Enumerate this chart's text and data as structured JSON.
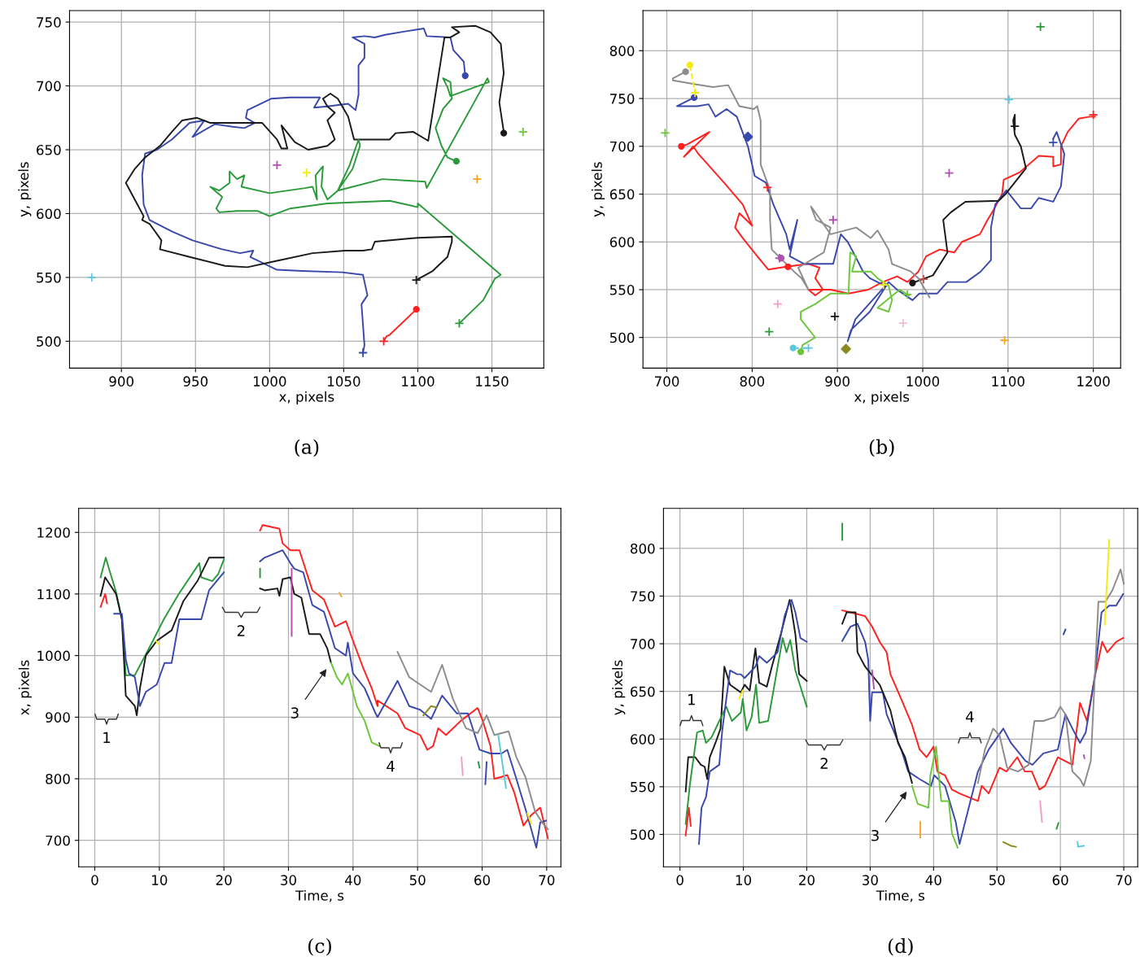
{
  "chart_data": [
    {
      "type": "line",
      "xlabel": "x, pixels",
      "ylabel": "y, pixels",
      "xlim": [
        865,
        1185
      ],
      "ylim": [
        479,
        759
      ],
      "xticks": [
        900,
        950,
        1000,
        1050,
        1100,
        1150
      ],
      "yticks": [
        500,
        550,
        600,
        650,
        700,
        750
      ],
      "grid": true,
      "annotations": [
        "(a)"
      ],
      "series": [
        {
          "color": "#3949ab",
          "x": [
            1063,
            1064,
            1062,
            1066,
            1063,
            1049,
            1022,
            1005,
            987,
            989,
            980,
            968,
            948,
            934,
            919,
            915,
            914,
            916,
            924,
            934,
            946,
            956,
            948,
            963,
            975,
            983,
            990,
            984,
            985,
            1001,
            1014,
            1034,
            1030,
            1039,
            1053,
            1058,
            1060,
            1060,
            1064,
            1064,
            1056,
            1064,
            1071,
            1078,
            1093,
            1104,
            1106,
            1122,
            1124,
            1131,
            1132
          ],
          "values": [
            491,
            497,
            529,
            536,
            552,
            554,
            555,
            556,
            566,
            571,
            569,
            572,
            579,
            586,
            595,
            607,
            630,
            647,
            650,
            658,
            671,
            673,
            660,
            670,
            668,
            667,
            671,
            675,
            681,
            690,
            691,
            691,
            683,
            684,
            686,
            681,
            693,
            716,
            722,
            733,
            738,
            739,
            738,
            740,
            743,
            745,
            739,
            738,
            728,
            719,
            708
          ]
        },
        {
          "color": "#1a1a1a",
          "x": [
            1099,
            1110,
            1120,
            1123,
            1123,
            1100,
            1071,
            1069,
            1063,
            1051,
            1029,
            1005,
            985,
            970,
            946,
            926,
            927,
            919,
            914,
            915,
            903,
            909,
            916,
            926,
            934,
            941,
            951,
            960,
            980,
            995,
            1005,
            1008,
            1012,
            1008,
            1017,
            1026,
            1039,
            1044,
            1039,
            1044,
            1039,
            1036,
            1041,
            1046,
            1053,
            1057,
            1081,
            1085,
            1097,
            1107,
            1118,
            1122,
            1128,
            1123,
            1139,
            1149,
            1156,
            1158,
            1155,
            1158
          ],
          "values": [
            548,
            555,
            566,
            578,
            582,
            581,
            578,
            572,
            571,
            571,
            569,
            563,
            558,
            559,
            566,
            572,
            579,
            592,
            595,
            598,
            624,
            635,
            644,
            653,
            664,
            673,
            675,
            671,
            671,
            671,
            658,
            651,
            651,
            669,
            656,
            650,
            653,
            658,
            673,
            679,
            684,
            690,
            694,
            690,
            676,
            658,
            658,
            663,
            664,
            657,
            738,
            738,
            742,
            746,
            747,
            742,
            733,
            710,
            687,
            664
          ]
        },
        {
          "color": "#2a9a3a",
          "x": [
            1128,
            1144,
            1152,
            1156,
            1100,
            1100,
            1081,
            1039,
            1014,
            1000,
            992,
            978,
            966,
            964,
            968,
            960,
            966,
            973,
            973,
            978,
            983,
            981,
            1000,
            1024,
            1029,
            1032,
            1031,
            1036,
            1035,
            1039,
            1046,
            1054,
            1060,
            1061,
            1056,
            1046,
            1076,
            1105,
            1106,
            1147,
            1148,
            1122,
            1120,
            1117,
            1122,
            1123,
            1117,
            1112,
            1116,
            1120,
            1126
          ],
          "values": [
            514,
            532,
            549,
            552,
            608,
            605,
            610,
            608,
            604,
            598,
            602,
            602,
            601,
            604,
            613,
            621,
            618,
            624,
            633,
            627,
            630,
            621,
            616,
            620,
            621,
            611,
            630,
            637,
            621,
            611,
            618,
            638,
            658,
            653,
            635,
            618,
            627,
            625,
            620,
            706,
            703,
            692,
            699,
            706,
            703,
            690,
            682,
            667,
            653,
            644,
            641
          ]
        },
        {
          "color": "#ff2020",
          "x": [
            1077,
            1079,
            1081,
            1099
          ],
          "values": [
            500,
            504,
            505,
            525
          ]
        },
        {
          "type": "scatter",
          "marker": "cross",
          "x": [
            880,
            1005,
            1025,
            1140,
            1171,
            1099,
            1128,
            1063,
            1077
          ],
          "values": [
            550,
            638,
            632,
            627,
            664,
            548,
            514,
            491,
            500
          ],
          "colors": [
            "#5bc8e0",
            "#b24fb2",
            "#f5ea14",
            "#f5a623",
            "#6bc63a",
            "#1a1a1a",
            "#2a9a3a",
            "#3949ab",
            "#ff2020"
          ]
        },
        {
          "type": "scatter",
          "marker": "circle",
          "x": [
            1132,
            1158,
            1126,
            1099
          ],
          "values": [
            708,
            663,
            641,
            525
          ],
          "colors": [
            "#3949ab",
            "#1a1a1a",
            "#2a9a3a",
            "#ff2020"
          ]
        }
      ]
    },
    {
      "type": "line",
      "xlabel": "x, pixels",
      "ylabel": "y, pixels",
      "xlim": [
        672,
        1232
      ],
      "ylim": [
        468,
        842
      ],
      "xticks": [
        700,
        800,
        900,
        1000,
        1100,
        1200
      ],
      "yticks": [
        500,
        550,
        600,
        650,
        700,
        750,
        800
      ],
      "grid": true,
      "annotations": [
        "(b)"
      ],
      "series": [
        {
          "color": "#ff2020",
          "x": [
            717,
            724,
            750,
            720,
            731,
            737,
            750,
            767,
            789,
            800,
            785,
            780,
            789,
            806,
            819,
            840,
            866,
            879,
            874,
            883,
            874,
            866,
            892,
            913,
            936,
            953,
            970,
            982,
            995,
            1004,
            1020,
            1037,
            1046,
            1067,
            1076,
            1084,
            1093,
            1095,
            1114,
            1136,
            1153,
            1153,
            1162,
            1162,
            1170,
            1183,
            1196,
            1202
          ],
          "values": [
            700,
            702,
            715,
            689,
            700,
            692,
            679,
            662,
            639,
            617,
            630,
            615,
            604,
            585,
            571,
            574,
            577,
            573,
            562,
            550,
            544,
            550,
            550,
            546,
            550,
            558,
            564,
            558,
            569,
            585,
            592,
            589,
            600,
            608,
            623,
            635,
            650,
            665,
            673,
            690,
            689,
            679,
            681,
            700,
            715,
            729,
            731,
            731
          ]
        },
        {
          "color": "#3949ab",
          "x": [
            732,
            712,
            736,
            749,
            757,
            770,
            782,
            795,
            803,
            816,
            825,
            840,
            844,
            853,
            844,
            861,
            895,
            904,
            912,
            921,
            930,
            938,
            956,
            921,
            912,
            916,
            938,
            960,
            970,
            988,
            996,
            1017,
            1029,
            1051,
            1068,
            1080,
            1080,
            1085,
            1098,
            1115,
            1127,
            1136,
            1153,
            1162,
            1166,
            1157,
            1153
          ],
          "values": [
            751,
            742,
            742,
            744,
            731,
            739,
            731,
            700,
            669,
            662,
            639,
            608,
            592,
            623,
            585,
            577,
            577,
            608,
            600,
            585,
            569,
            562,
            554,
            519,
            496,
            508,
            527,
            558,
            550,
            539,
            546,
            546,
            558,
            558,
            569,
            581,
            615,
            639,
            654,
            635,
            635,
            646,
            642,
            658,
            692,
            715,
            708
          ]
        },
        {
          "color": "#1a1a1a",
          "x": [
            988,
            1012,
            1029,
            1024,
            1033,
            1050,
            1089,
            1097,
            1121,
            1115,
            1108,
            1106,
            1108,
            1108
          ],
          "values": [
            557,
            565,
            589,
            623,
            631,
            642,
            643,
            650,
            677,
            700,
            712,
            727,
            733,
            721
          ]
        },
        {
          "color": "#8c8c8c",
          "x": [
            722,
            707,
            707,
            733,
            754,
            772,
            785,
            802,
            806,
            810,
            810,
            821,
            821,
            823,
            849,
            858,
            866,
            854,
            884,
            892,
            875,
            869,
            892,
            922,
            939,
            947,
            960,
            964,
            986,
            995,
            1008
          ],
          "values": [
            778,
            771,
            769,
            765,
            762,
            764,
            742,
            739,
            742,
            727,
            681,
            654,
            623,
            592,
            569,
            562,
            550,
            573,
            589,
            615,
            623,
            637,
            608,
            615,
            604,
            612,
            592,
            577,
            569,
            562,
            542
          ]
        },
        {
          "color": "#f5ea14",
          "line_style": "dashed",
          "x": [
            727,
            733
          ],
          "values": [
            785,
            756
          ]
        },
        {
          "color": "#6bc63a",
          "x": [
            857,
            859,
            874,
            857,
            857,
            874,
            892,
            913,
            915,
            922,
            917,
            939,
            947,
            960,
            964,
            960,
            947,
            973,
            984
          ],
          "values": [
            485,
            492,
            500,
            519,
            527,
            535,
            546,
            546,
            589,
            585,
            569,
            569,
            562,
            554,
            539,
            527,
            531,
            550,
            544
          ]
        },
        {
          "color": "#5bc8e0",
          "line_style": "dashed",
          "x": [
            848,
            866
          ],
          "values": [
            489,
            489
          ]
        },
        {
          "type": "scatter",
          "marker": "cross",
          "x": [
            1138,
            1101,
            698,
            818,
            1031,
            895,
            832,
            830,
            820,
            897,
            977,
            1096,
            982,
            1001,
            1200,
            1108,
            1153,
            866,
            733,
            954
          ],
          "values": [
            825,
            749,
            714,
            657,
            672,
            623,
            583,
            535,
            506,
            522,
            515,
            497,
            545,
            561,
            733,
            721,
            704,
            489,
            756,
            555
          ],
          "colors": [
            "#2a9a3a",
            "#5bc8e0",
            "#6bc63a",
            "#ff2020",
            "#b24fb2",
            "#b24fb2",
            "#b24fb2",
            "#f0a0c8",
            "#2a9a3a",
            "#1a1a1a",
            "#f0c0d0",
            "#f5a623",
            "#6bc63a",
            "#c05050",
            "#ff2020",
            "#1a1a1a",
            "#3949ab",
            "#5bc8e0",
            "#f5ea14",
            "#f5ea14"
          ]
        },
        {
          "type": "scatter",
          "marker": "circle",
          "x": [
            717,
            842,
            732,
            722,
            727,
            988,
            857,
            848,
            834
          ],
          "values": [
            700,
            574,
            751,
            778,
            785,
            557,
            485,
            489,
            583
          ],
          "colors": [
            "#ff2020",
            "#ff2020",
            "#3949ab",
            "#8c8c8c",
            "#f5ea14",
            "#1a1a1a",
            "#6bc63a",
            "#5bc8e0",
            "#b24fb2"
          ]
        },
        {
          "type": "scatter",
          "marker": "diamond",
          "x": [
            795,
            910
          ],
          "values": [
            710,
            488
          ],
          "colors": [
            "#3949ab",
            "#8a8a20"
          ]
        }
      ]
    },
    {
      "type": "line",
      "xlabel": "Time, s",
      "ylabel": "x, pixels",
      "xlim": [
        -2.5,
        72.2
      ],
      "ylim": [
        657,
        1239
      ],
      "xticks": [
        0,
        10,
        20,
        30,
        40,
        50,
        60,
        70
      ],
      "yticks": [
        700,
        800,
        900,
        1000,
        1100,
        1200
      ],
      "grid": true,
      "annotations": [
        "(c)",
        "1",
        "2",
        "3",
        "4"
      ],
      "series": [
        {
          "color": "#2a9a3a",
          "x": [
            0.9,
            1.7,
            2.2,
            3.3,
            4.2,
            4.8,
            6.2,
            6.9,
            9.0,
            10.7,
            13.0,
            16.2,
            16.5,
            18.2,
            19.1,
            20.0
          ],
          "values": [
            1127,
            1159,
            1141,
            1103,
            1059,
            968,
            968,
            982,
            1024,
            1059,
            1100,
            1150,
            1127,
            1121,
            1132,
            1156
          ]
        },
        {
          "color": "#1a1a1a",
          "x": [
            0.9,
            1.6,
            3.3,
            4.2,
            4.8,
            6.2,
            6.5,
            7.0,
            7.9,
            9.6,
            11.9,
            13.7,
            15.9,
            17.7,
            20.0
          ],
          "values": [
            1097,
            1127,
            1100,
            1059,
            935,
            918,
            903,
            947,
            1000,
            1024,
            1041,
            1088,
            1121,
            1159,
            1159
          ]
        },
        {
          "color": "#ff2020",
          "x": [
            0.9,
            1.6,
            1.9
          ],
          "values": [
            1079,
            1100,
            1085
          ]
        },
        {
          "color": "#3949ab",
          "x": [
            3.0,
            4.2,
            4.8,
            5.3,
            6.2,
            7.0,
            7.9,
            9.6,
            10.8,
            11.9,
            13.1,
            16.5,
            17.7,
            20.0
          ],
          "values": [
            1068,
            1068,
            994,
            971,
            965,
            918,
            941,
            953,
            988,
            988,
            1059,
            1059,
            1106,
            1135
          ]
        },
        {
          "color": "#f5ea14",
          "x": [
            9.5,
            9.9
          ],
          "values": [
            1024,
            1018
          ]
        },
        {
          "color": "#ff2020",
          "x": [
            25.6,
            26.0,
            28.6,
            29.1,
            30.3,
            31.7,
            33.7,
            35.5,
            37.2,
            38.9,
            40.0,
            41.5,
            42.9,
            43.8,
            43.8,
            46.9,
            48.1,
            50.4,
            51.5,
            52.4,
            53.2,
            54.4,
            56.7,
            59.3,
            60.1,
            61.3,
            61.9,
            63.0,
            63.9,
            65.0,
            66.4,
            67.6,
            69.0,
            70.2
          ],
          "values": [
            1203,
            1212,
            1206,
            1182,
            1171,
            1171,
            1106,
            1091,
            1047,
            1056,
            1024,
            982,
            947,
            918,
            927,
            906,
            882,
            871,
            847,
            853,
            882,
            871,
            894,
            915,
            894,
            853,
            800,
            803,
            806,
            777,
            724,
            741,
            753,
            703
          ]
        },
        {
          "color": "#3949ab",
          "x": [
            25.6,
            26.3,
            29.1,
            30.3,
            30.9,
            32.3,
            33.7,
            35.5,
            37.2,
            38.9,
            39.2,
            40.0,
            41.8,
            43.5,
            43.8,
            46.9,
            48.7,
            50.4,
            52.1,
            53.8,
            56.1,
            57.8,
            59.6,
            61.3,
            63.0,
            63.9,
            65.3,
            67.0,
            68.4,
            69.0,
            69.9
          ],
          "values": [
            1153,
            1159,
            1171,
            1150,
            1141,
            1135,
            1082,
            1071,
            1012,
            1000,
            1021,
            971,
            947,
            906,
            900,
            959,
            918,
            912,
            897,
            935,
            906,
            906,
            847,
            841,
            841,
            847,
            800,
            741,
            688,
            729,
            732
          ]
        },
        {
          "color": "#1a1a1a",
          "x": [
            25.6,
            26.3,
            28.3,
            28.6,
            29.1,
            30.3,
            30.9,
            32.0,
            33.2,
            34.9,
            36.0,
            36.6
          ],
          "values": [
            1109,
            1106,
            1109,
            1097,
            1124,
            1127,
            1100,
            1094,
            1035,
            1035,
            1012,
            988
          ]
        },
        {
          "color": "#6bc63a",
          "x": [
            36.6,
            37.5,
            38.3,
            39.2,
            40.6,
            41.8,
            42.9,
            44.1
          ],
          "values": [
            988,
            965,
            953,
            971,
            918,
            894,
            859,
            853
          ]
        },
        {
          "color": "#8c8c8c",
          "x": [
            46.9,
            48.7,
            50.4,
            52.1,
            53.8,
            55.5,
            57.5,
            59.3,
            60.7,
            61.9,
            64.1,
            65.3,
            66.7,
            68.2,
            69.3,
            70.2
          ],
          "values": [
            1006,
            965,
            953,
            941,
            985,
            929,
            882,
            874,
            903,
            871,
            877,
            835,
            803,
            747,
            729,
            718
          ]
        },
        {
          "color": "#b24fb2",
          "x": [
            30.5,
            30.5
          ],
          "values": [
            1141,
            1032
          ]
        },
        {
          "color": "#f5a623",
          "x": [
            37.9,
            38.2
          ],
          "values": [
            1102,
            1096
          ]
        },
        {
          "color": "#2a9a3a",
          "x": [
            25.6,
            25.6
          ],
          "values": [
            1141,
            1127
          ]
        },
        {
          "color": "#8a8a20",
          "x": [
            50.9,
            52.1,
            52.9
          ],
          "values": [
            903,
            918,
            916
          ]
        },
        {
          "color": "#f0a0c8",
          "x": [
            56.8,
            57.0
          ],
          "values": [
            835,
            806
          ]
        },
        {
          "color": "#2a9a3a",
          "x": [
            59.4,
            59.6
          ],
          "values": [
            827,
            818
          ]
        },
        {
          "color": "#3949ab",
          "x": [
            60.7,
            60.5
          ],
          "values": [
            827,
            791
          ]
        },
        {
          "color": "#5bc8e0",
          "x": [
            62.5,
            63.7
          ],
          "values": [
            871,
            785
          ]
        },
        {
          "color": "#f5ea14",
          "x": [
            67.0,
            67.6
          ],
          "values": [
            744,
            727
          ]
        }
      ]
    },
    {
      "type": "line",
      "xlabel": "Time, s",
      "ylabel": "y, pixels",
      "xlim": [
        -2.6,
        72.2
      ],
      "ylim": [
        466,
        842
      ],
      "xticks": [
        0,
        10,
        20,
        30,
        40,
        50,
        60,
        70
      ],
      "yticks": [
        500,
        550,
        600,
        650,
        700,
        750,
        800
      ],
      "grid": true,
      "annotations": [
        "(d)",
        "1",
        "2",
        "3",
        "4"
      ],
      "series": [
        {
          "color": "#1a1a1a",
          "x": [
            0.9,
            1.3,
            2.4,
            3.3,
            3.9,
            4.3,
            4.7,
            5.6,
            6.4,
            7.0,
            7.9,
            9.6,
            10.2,
            11.0,
            11.9,
            12.5,
            13.7,
            14.5,
            15.9,
            17.3,
            17.4,
            18.2,
            18.8,
            20.0
          ],
          "values": [
            545,
            581,
            581,
            573,
            571,
            558,
            581,
            596,
            611,
            676,
            657,
            649,
            657,
            651,
            695,
            659,
            655,
            676,
            710,
            746,
            744,
            710,
            668,
            661
          ]
        },
        {
          "color": "#2a9a3a",
          "x": [
            0.9,
            1.6,
            2.7,
            3.6,
            4.1,
            5.0,
            6.2,
            7.3,
            8.2,
            9.6,
            9.9,
            10.5,
            11.3,
            12.0,
            12.5,
            13.9,
            16.2,
            16.8,
            17.4,
            18.2,
            20.0
          ],
          "values": [
            511,
            554,
            607,
            609,
            596,
            602,
            619,
            634,
            619,
            628,
            642,
            609,
            623,
            657,
            617,
            619,
            706,
            691,
            704,
            672,
            634
          ]
        },
        {
          "color": "#ff2020",
          "x": [
            0.9,
            1.4,
            1.7
          ],
          "values": [
            499,
            528,
            509
          ]
        },
        {
          "color": "#3949ab",
          "x": [
            3.0,
            3.4,
            4.1,
            4.7,
            6.2,
            6.7,
            7.9,
            9.0,
            9.6,
            10.2,
            11.9,
            12.5,
            13.7,
            15.4,
            16.5,
            17.1,
            17.6,
            18.2,
            19.0,
            20.0
          ],
          "values": [
            490,
            528,
            539,
            566,
            573,
            611,
            672,
            668,
            668,
            664,
            676,
            687,
            680,
            691,
            729,
            740,
            746,
            733,
            706,
            702
          ]
        },
        {
          "color": "#f5ea14",
          "x": [
            9.3,
            9.9
          ],
          "values": [
            642,
            651
          ]
        },
        {
          "color": "#ff2020",
          "x": [
            25.6,
            26.9,
            28.0,
            29.2,
            30.3,
            31.5,
            32.6,
            33.2,
            34.9,
            36.6,
            37.8,
            38.9,
            40.0,
            40.6,
            41.8,
            42.9,
            44.1,
            47.0,
            47.6,
            48.7,
            50.4,
            51.5,
            53.2,
            54.4,
            55.5,
            56.7,
            57.6,
            59.6,
            61.9,
            63.1,
            64.2,
            65.4,
            66.6,
            67.4,
            68.8,
            69.9
          ],
          "values": [
            735,
            733,
            731,
            729,
            718,
            702,
            691,
            668,
            642,
            615,
            589,
            581,
            592,
            566,
            562,
            547,
            543,
            535,
            551,
            543,
            570,
            566,
            581,
            566,
            566,
            547,
            551,
            581,
            573,
            638,
            619,
            664,
            702,
            691,
            702,
            706
          ]
        },
        {
          "color": "#3949ab",
          "x": [
            25.6,
            26.9,
            28.0,
            29.2,
            29.7,
            30.0,
            30.3,
            32.0,
            32.6,
            33.8,
            34.9,
            36.0,
            37.8,
            39.6,
            40.1,
            41.8,
            43.5,
            44.1,
            47.0,
            48.7,
            51.0,
            52.2,
            54.5,
            55.6,
            57.3,
            59.6,
            60.8,
            61.9,
            63.1,
            64.0,
            65.4,
            66.5,
            67.7,
            68.8,
            69.9
          ],
          "values": [
            703,
            718,
            721,
            702,
            683,
            619,
            649,
            649,
            626,
            607,
            589,
            566,
            558,
            551,
            562,
            551,
            513,
            490,
            566,
            589,
            611,
            596,
            577,
            573,
            585,
            589,
            626,
            611,
            596,
            607,
            664,
            733,
            740,
            740,
            752
          ]
        },
        {
          "color": "#1a1a1a",
          "x": [
            25.6,
            26.3,
            27.7,
            28.0,
            29.2,
            31.5,
            33.2,
            34.4,
            35.5,
            36.6
          ],
          "values": [
            721,
            733,
            733,
            691,
            676,
            657,
            630,
            596,
            581,
            554
          ]
        },
        {
          "color": "#6bc63a",
          "x": [
            36.6,
            37.5,
            39.2,
            39.5,
            40.4,
            41.2,
            42.4,
            42.9,
            43.8
          ],
          "values": [
            551,
            532,
            528,
            562,
            592,
            535,
            535,
            501,
            486
          ]
        },
        {
          "color": "#8c8c8c",
          "x": [
            47.0,
            48.1,
            49.4,
            50.4,
            51.6,
            53.3,
            55.0,
            55.9,
            57.3,
            59.1,
            60.0,
            60.8,
            61.9,
            63.1,
            63.7,
            64.8,
            66.0,
            67.1,
            68.2,
            69.5,
            70.0
          ],
          "values": [
            554,
            589,
            611,
            604,
            570,
            566,
            573,
            619,
            619,
            623,
            634,
            626,
            566,
            558,
            551,
            577,
            744,
            744,
            756,
            778,
            763
          ]
        },
        {
          "color": "#2a9a3a",
          "x": [
            25.6,
            25.6
          ],
          "values": [
            826,
            809
          ]
        },
        {
          "color": "#b24fb2",
          "x": [
            30.3,
            30.6
          ],
          "values": [
            672,
            653
          ]
        },
        {
          "color": "#f5a623",
          "x": [
            37.9,
            37.9
          ],
          "values": [
            513,
            497
          ]
        },
        {
          "color": "#8a8a20",
          "x": [
            51.0,
            52.2,
            53.0
          ],
          "values": [
            492,
            488,
            487
          ]
        },
        {
          "color": "#f0a0c8",
          "x": [
            56.8,
            57.1
          ],
          "values": [
            535,
            513
          ]
        },
        {
          "color": "#2a9a3a",
          "x": [
            59.4,
            59.7
          ],
          "values": [
            506,
            512
          ]
        },
        {
          "color": "#3949ab",
          "x": [
            60.5,
            60.8
          ],
          "values": [
            710,
            715
          ]
        },
        {
          "color": "#5bc8e0",
          "x": [
            62.7,
            62.8,
            63.7
          ],
          "values": [
            492,
            487,
            488
          ]
        },
        {
          "color": "#b24fb2",
          "x": [
            63.7,
            63.8
          ],
          "values": [
            583,
            580
          ]
        },
        {
          "color": "#f5ea14",
          "x": [
            67.0,
            67.7
          ],
          "values": [
            720,
            809
          ]
        }
      ]
    }
  ]
}
